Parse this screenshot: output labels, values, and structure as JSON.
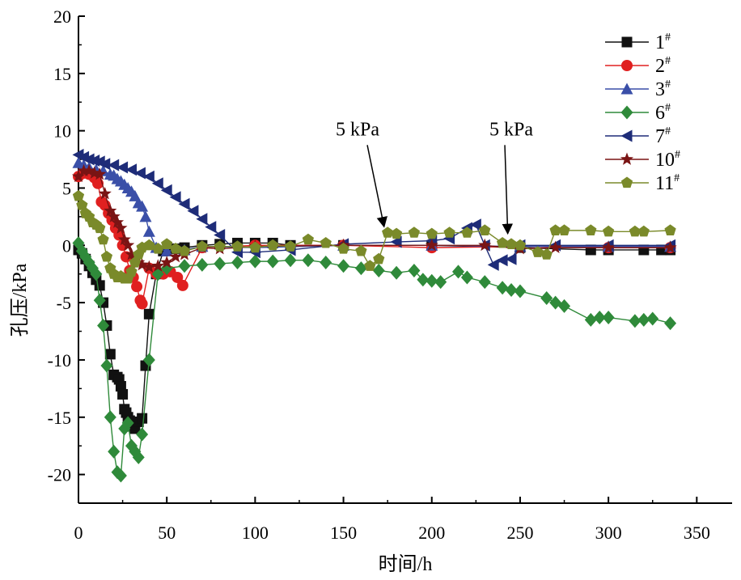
{
  "chart_data": {
    "type": "line",
    "xlabel": "时间/h",
    "ylabel": "孔压/kPa",
    "xlim": [
      0,
      370
    ],
    "ylim": [
      -22.5,
      20
    ],
    "xticks": [
      0,
      50,
      100,
      150,
      200,
      250,
      300,
      350
    ],
    "yticks": [
      20,
      15,
      10,
      5,
      0,
      -5,
      -10,
      -15,
      -20
    ],
    "legend_position": "top-right",
    "annotations": [
      {
        "text": "5 kPa",
        "text_x": 158,
        "text_y": 9.6,
        "arrow_to": [
          173,
          1.2
        ]
      },
      {
        "text": "5 kPa",
        "text_x": 245,
        "text_y": 9.6,
        "arrow_to": [
          243,
          0.6
        ]
      }
    ],
    "series": [
      {
        "name": "1",
        "name_sup": "#",
        "color": "#111111",
        "marker": "square",
        "x": [
          0,
          2,
          4,
          6,
          8,
          10,
          12,
          14,
          16,
          18,
          20,
          22,
          23,
          24,
          25,
          26,
          27,
          28,
          29,
          30,
          31,
          32,
          34,
          36,
          38,
          40,
          44,
          48,
          52,
          56,
          60,
          70,
          80,
          90,
          100,
          110,
          120,
          150,
          200,
          250,
          290,
          300,
          320,
          330,
          335
        ],
        "y": [
          -0.4,
          -0.7,
          -1.2,
          -1.8,
          -2.4,
          -3.0,
          -3.5,
          -5.0,
          -7.0,
          -9.5,
          -11.3,
          -11.5,
          -11.7,
          -12.3,
          -13.0,
          -14.3,
          -14.6,
          -15.0,
          -15.3,
          -15.6,
          -15.8,
          -16.0,
          -15.4,
          -15.1,
          -10.5,
          -6.0,
          -2.5,
          -0.5,
          -0.3,
          -0.3,
          -0.2,
          0.0,
          0.1,
          0.2,
          0.2,
          0.2,
          0.0,
          0.0,
          0.0,
          -0.2,
          -0.4,
          -0.4,
          -0.4,
          -0.4,
          -0.4
        ]
      },
      {
        "name": "2",
        "name_sup": "#",
        "color": "#e02020",
        "marker": "circle",
        "x": [
          0,
          3,
          6,
          9,
          11,
          13,
          15,
          17,
          19,
          21,
          23,
          25,
          27,
          29,
          31,
          33,
          35,
          36,
          40,
          44,
          48,
          52,
          56,
          59,
          70,
          100,
          150,
          200,
          250,
          300,
          335
        ],
        "y": [
          6.0,
          6.3,
          6.2,
          5.9,
          5.4,
          3.8,
          3.5,
          2.8,
          2.2,
          1.5,
          0.9,
          0.0,
          -1.0,
          -2.2,
          -2.8,
          -3.6,
          -4.8,
          -5.1,
          -2.0,
          -2.5,
          -2.5,
          -2.3,
          -2.8,
          -3.5,
          -0.2,
          0.0,
          0.0,
          -0.2,
          -0.1,
          -0.2,
          -0.2
        ]
      },
      {
        "name": "3",
        "name_sup": "#",
        "color": "#3a4fa8",
        "marker": "triangle-up",
        "x": [
          0,
          3,
          6,
          10,
          14,
          18,
          20,
          22,
          24,
          26,
          28,
          30,
          32,
          34,
          36,
          38,
          40,
          44,
          50,
          60,
          70,
          100,
          150,
          200,
          250,
          300,
          335
        ],
        "y": [
          7.2,
          7.0,
          6.8,
          6.6,
          6.5,
          6.2,
          6.1,
          5.8,
          5.6,
          5.3,
          5.0,
          4.7,
          4.3,
          3.7,
          3.4,
          2.5,
          1.2,
          -0.2,
          -0.5,
          -0.4,
          -0.1,
          -0.2,
          0.0,
          0.0,
          -0.1,
          -0.1,
          -0.1
        ]
      },
      {
        "name": "6",
        "name_sup": "#",
        "color": "#2f8a3a",
        "marker": "diamond",
        "x": [
          0,
          2,
          4,
          6,
          8,
          10,
          12,
          14,
          16,
          18,
          20,
          22,
          24,
          26,
          28,
          30,
          32,
          34,
          36,
          40,
          45,
          50,
          60,
          70,
          80,
          90,
          100,
          110,
          120,
          130,
          140,
          150,
          160,
          170,
          180,
          190,
          195,
          200,
          205,
          215,
          220,
          230,
          240,
          245,
          250,
          265,
          270,
          275,
          290,
          295,
          300,
          315,
          320,
          325,
          335
        ],
        "y": [
          0.2,
          -0.5,
          -1.0,
          -1.5,
          -2.0,
          -2.5,
          -4.8,
          -7.0,
          -10.5,
          -15.0,
          -18.0,
          -19.8,
          -20.1,
          -16.0,
          -15.5,
          -17.5,
          -18.0,
          -18.5,
          -16.5,
          -10.0,
          -2.5,
          -2.0,
          -1.8,
          -1.7,
          -1.6,
          -1.5,
          -1.4,
          -1.4,
          -1.3,
          -1.3,
          -1.5,
          -1.8,
          -2.0,
          -2.2,
          -2.4,
          -2.2,
          -3.0,
          -3.1,
          -3.2,
          -2.3,
          -2.8,
          -3.2,
          -3.7,
          -3.9,
          -4.0,
          -4.6,
          -5.0,
          -5.3,
          -6.5,
          -6.3,
          -6.3,
          -6.6,
          -6.5,
          -6.4,
          -6.8
        ]
      },
      {
        "name": "7",
        "name_sup": "#",
        "color": "#1e2c78",
        "marker": "triangle-left",
        "x": [
          0,
          3,
          6,
          9,
          12,
          15,
          20,
          25,
          30,
          35,
          40,
          45,
          50,
          55,
          60,
          65,
          70,
          75,
          80,
          90,
          100,
          120,
          150,
          180,
          200,
          210,
          220,
          225,
          230,
          235,
          240,
          245,
          250,
          270,
          300,
          335
        ],
        "y": [
          7.9,
          7.7,
          7.5,
          7.4,
          7.3,
          7.1,
          7.0,
          6.8,
          6.6,
          6.3,
          6.0,
          5.4,
          4.8,
          4.2,
          3.6,
          3.0,
          2.3,
          1.6,
          0.9,
          -0.6,
          -0.6,
          -0.4,
          0.1,
          0.3,
          0.4,
          0.6,
          1.5,
          1.8,
          0.0,
          -1.7,
          -1.3,
          -1.2,
          0.0,
          0.0,
          0.0,
          0.0
        ]
      },
      {
        "name": "10",
        "name_sup": "#",
        "color": "#7a1414",
        "marker": "star",
        "x": [
          0,
          3,
          6,
          9,
          12,
          15,
          18,
          20,
          22,
          24,
          26,
          28,
          30,
          32,
          34,
          36,
          40,
          45,
          50,
          55,
          60,
          70,
          80,
          100,
          150,
          200,
          230,
          250,
          270,
          300,
          335
        ],
        "y": [
          6.0,
          6.5,
          6.5,
          6.3,
          6.2,
          4.5,
          3.0,
          2.5,
          2.0,
          1.5,
          0.5,
          0.0,
          -0.8,
          -1.2,
          -1.5,
          -1.7,
          -1.9,
          -1.8,
          -1.5,
          -1.0,
          -0.8,
          -0.2,
          -0.3,
          -0.1,
          0.0,
          0.0,
          0.0,
          -0.3,
          -0.2,
          -0.2,
          -0.2
        ]
      },
      {
        "name": "11",
        "name_sup": "#",
        "color": "#7a8a2a",
        "marker": "pentagon",
        "x": [
          0,
          2,
          4,
          6,
          8,
          10,
          12,
          14,
          16,
          18,
          20,
          22,
          24,
          26,
          28,
          30,
          32,
          34,
          36,
          40,
          45,
          50,
          55,
          60,
          70,
          80,
          90,
          100,
          110,
          120,
          130,
          140,
          150,
          160,
          165,
          170,
          175,
          180,
          190,
          200,
          210,
          220,
          230,
          240,
          245,
          250,
          260,
          265,
          270,
          275,
          290,
          300,
          315,
          320,
          335
        ],
        "y": [
          4.3,
          3.5,
          2.8,
          2.5,
          2.0,
          1.8,
          1.5,
          0.5,
          -1.0,
          -2.0,
          -2.5,
          -2.8,
          -2.7,
          -2.9,
          -2.9,
          -2.3,
          -1.5,
          -0.8,
          -0.2,
          0.0,
          -0.3,
          0.1,
          -0.3,
          -0.5,
          -0.1,
          -0.1,
          -0.1,
          -0.2,
          0.0,
          -0.1,
          0.5,
          0.2,
          -0.3,
          -0.5,
          -1.8,
          -1.2,
          1.1,
          1.0,
          1.1,
          1.0,
          1.1,
          1.1,
          1.3,
          0.2,
          0.1,
          0.0,
          -0.6,
          -0.8,
          1.3,
          1.3,
          1.3,
          1.2,
          1.2,
          1.2,
          1.3
        ]
      }
    ]
  }
}
